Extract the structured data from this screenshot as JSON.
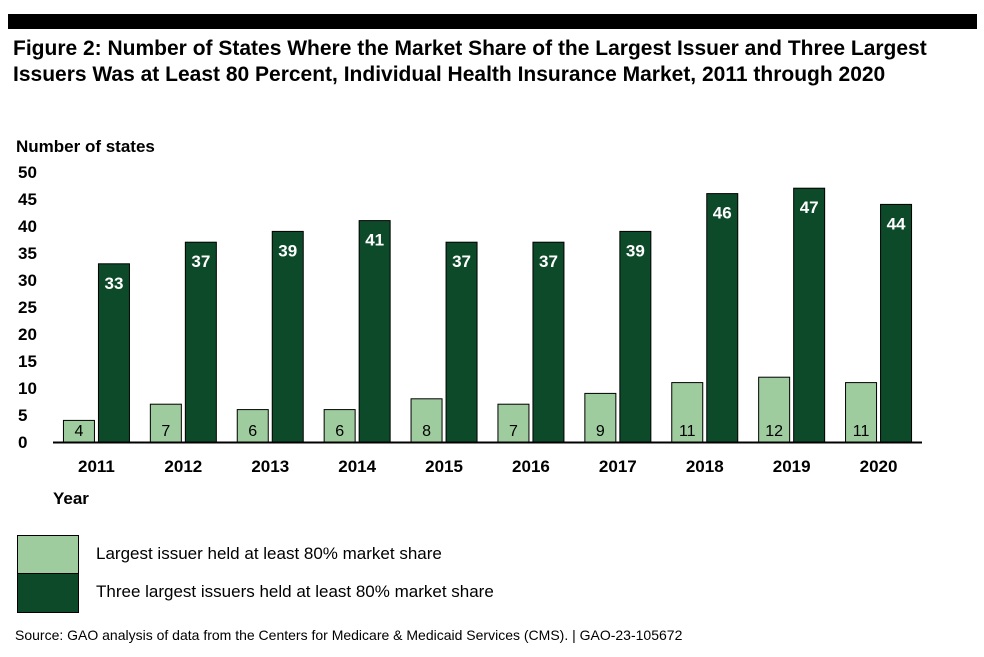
{
  "title": "Figure 2: Number of States Where the Market Share of the Largest Issuer and Three Largest Issuers Was at Least 80 Percent, Individual Health Insurance Market, 2011 through 2020",
  "source": "Source: GAO analysis of data from the Centers for Medicare & Medicaid Services (CMS).  |  GAO-23-105672",
  "colors": {
    "largest_issuer": "#9fcc9e",
    "three_largest": "#0d4a2a",
    "top_bar": "#000000"
  },
  "chart_data": {
    "type": "bar",
    "title": "Figure 2: Number of States Where the Market Share of the Largest Issuer and Three Largest Issuers Was at Least 80 Percent, Individual Health Insurance Market, 2011 through 2020",
    "xlabel": "Year",
    "ylabel": "Number of states",
    "ylim": [
      0,
      50
    ],
    "yticks": [
      0,
      5,
      10,
      15,
      20,
      25,
      30,
      35,
      40,
      45,
      50
    ],
    "grid": false,
    "legend_position": "bottom-left",
    "categories": [
      "2011",
      "2012",
      "2013",
      "2014",
      "2015",
      "2016",
      "2017",
      "2018",
      "2019",
      "2020"
    ],
    "series": [
      {
        "name": "Largest issuer held at least 80% market share",
        "values": [
          4,
          7,
          6,
          6,
          8,
          7,
          9,
          11,
          12,
          11
        ]
      },
      {
        "name": "Three largest issuers held at least 80% market share",
        "values": [
          33,
          37,
          39,
          41,
          37,
          37,
          39,
          46,
          47,
          44
        ]
      }
    ]
  }
}
